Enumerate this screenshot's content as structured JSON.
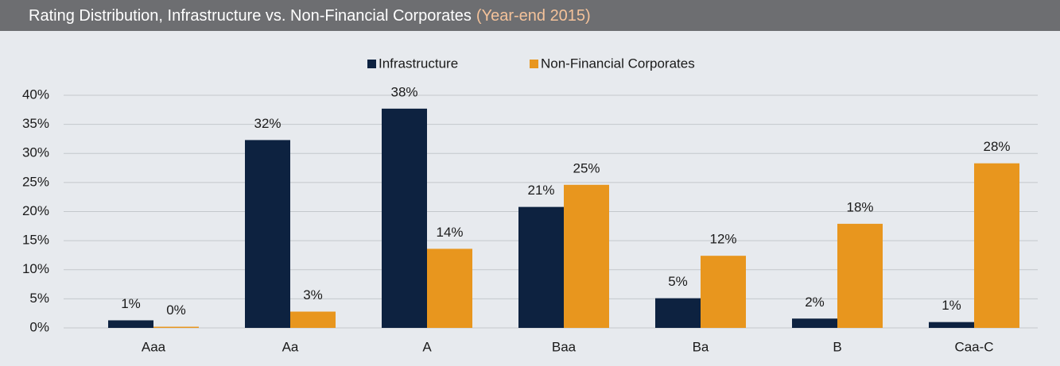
{
  "chart_data": {
    "type": "bar",
    "title": "Rating Distribution, Infrastructure vs. Non-Financial Corporates",
    "subtitle": "(Year-end 2015)",
    "categories": [
      "Aaa",
      "Aa",
      "A",
      "Baa",
      "Ba",
      "B",
      "Caa-C"
    ],
    "series": [
      {
        "name": "Infrastructure",
        "color": "#0d2240",
        "values": [
          1.3,
          32.3,
          37.7,
          20.8,
          5.1,
          1.6,
          1.0
        ],
        "value_labels": [
          "1%",
          "32%",
          "38%",
          "21%",
          "5%",
          "2%",
          "1%"
        ]
      },
      {
        "name": "Non-Financial Corporates",
        "color": "#e8961e",
        "values": [
          0.2,
          2.8,
          13.6,
          24.6,
          12.4,
          17.9,
          28.3
        ],
        "value_labels": [
          "0%",
          "3%",
          "14%",
          "25%",
          "12%",
          "18%",
          "28%"
        ]
      }
    ],
    "ylim": [
      0,
      40
    ],
    "yticks": [
      {
        "value": 0,
        "label": "0%"
      },
      {
        "value": 5,
        "label": "5%"
      },
      {
        "value": 10,
        "label": "10%"
      },
      {
        "value": 15,
        "label": "15%"
      },
      {
        "value": 20,
        "label": "20%"
      },
      {
        "value": 25,
        "label": "25%"
      },
      {
        "value": 30,
        "label": "30%"
      },
      {
        "value": 35,
        "label": "35%"
      },
      {
        "value": 40,
        "label": "40%"
      }
    ],
    "grid": true,
    "legend": "top"
  }
}
